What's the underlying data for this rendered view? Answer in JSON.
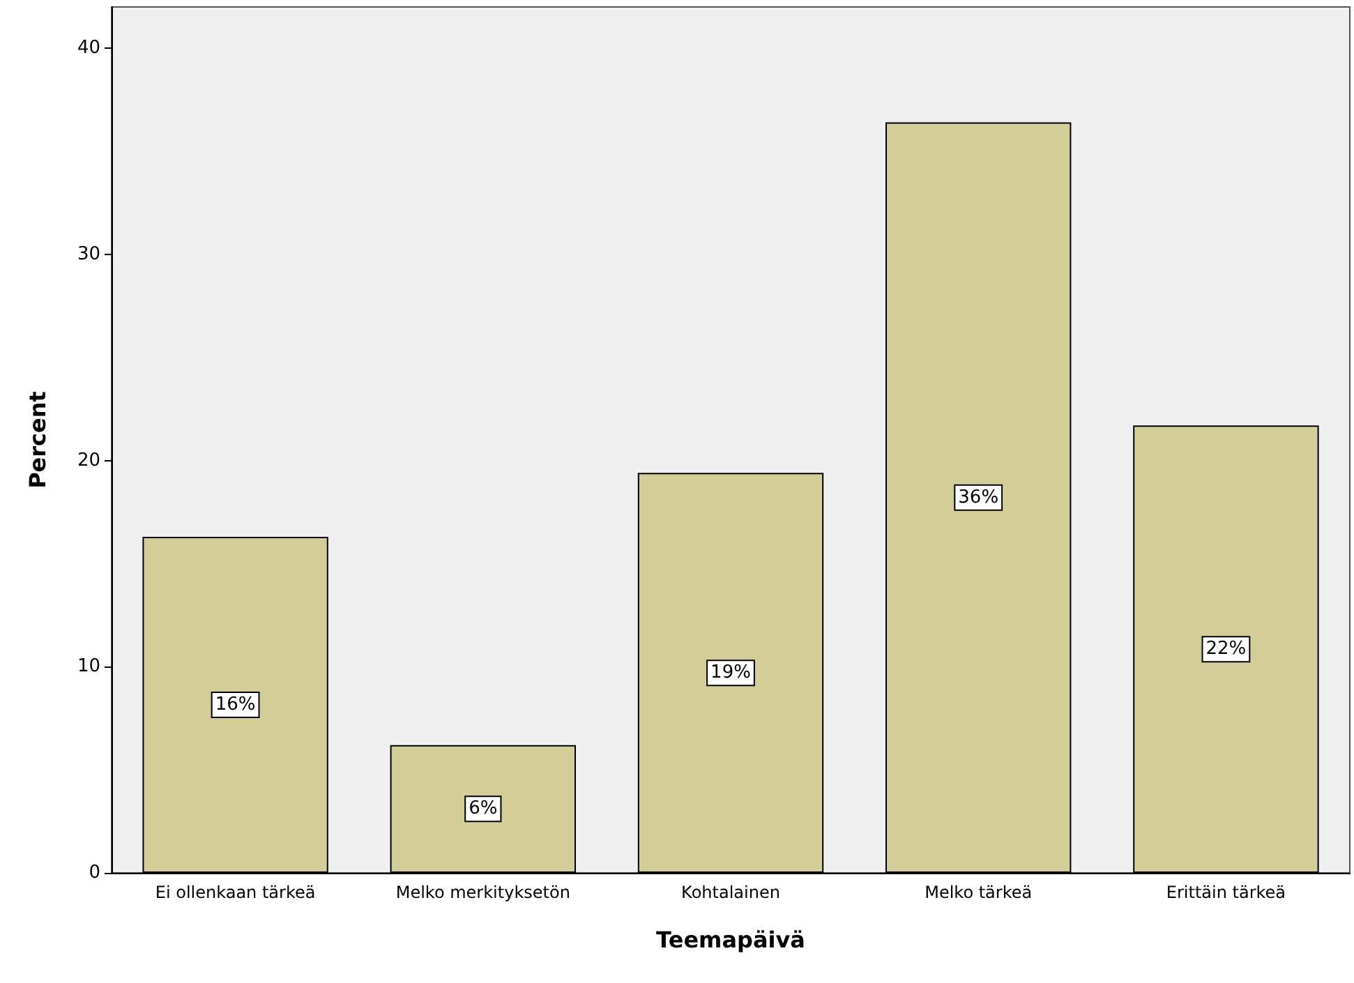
{
  "chart_data": {
    "type": "bar",
    "xlabel": "Teemapäivä",
    "ylabel": "Percent",
    "categories": [
      "Ei ollenkaan tärkeä",
      "Melko merkityksetön",
      "Kohtalainen",
      "Melko tärkeä",
      "Erittäin tärkeä"
    ],
    "values": [
      16.3,
      6.2,
      19.4,
      36.4,
      21.7
    ],
    "value_labels": [
      "16%",
      "6%",
      "19%",
      "36%",
      "22%"
    ],
    "color": "#d3ce97",
    "ylim": [
      0,
      42
    ],
    "yticks": [
      0,
      10,
      20,
      30,
      40
    ]
  }
}
